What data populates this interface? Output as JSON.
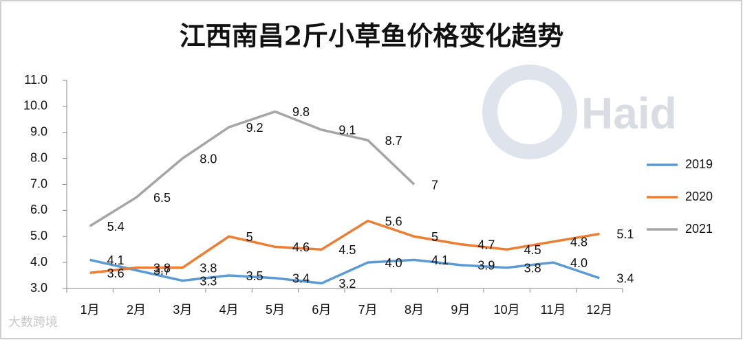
{
  "chart_data": {
    "type": "line",
    "title": "江西南昌2斤小草鱼价格变化趋势",
    "watermark": "Haid",
    "source_watermark": "大数跨境",
    "categories": [
      "1月",
      "2月",
      "3月",
      "4月",
      "5月",
      "6月",
      "7月",
      "8月",
      "9月",
      "10月",
      "11月",
      "12月"
    ],
    "series": [
      {
        "name": "2019",
        "color": "#5b9bd5",
        "values": [
          4.1,
          3.7,
          3.3,
          3.5,
          3.4,
          3.2,
          4.0,
          4.1,
          3.9,
          3.8,
          4.0,
          3.4
        ],
        "value_labels": [
          "4.1",
          "3.7",
          "3.3",
          "3.5",
          "3.4",
          "3.2",
          "4.0",
          "4.1",
          "3.9",
          "3.8",
          "4.0",
          "3.4"
        ]
      },
      {
        "name": "2020",
        "color": "#ed7d31",
        "values": [
          3.6,
          3.8,
          3.8,
          5,
          4.6,
          4.5,
          5.6,
          5,
          4.7,
          4.5,
          4.8,
          5.1
        ],
        "value_labels": [
          "3.6",
          "3.8",
          "3.8",
          "5",
          "4.6",
          "4.5",
          "5.6",
          "5",
          "4.7",
          "4.5",
          "4.8",
          "5.1"
        ]
      },
      {
        "name": "2021",
        "color": "#a5a5a5",
        "values": [
          5.4,
          6.5,
          8.0,
          9.2,
          9.8,
          9.1,
          8.7,
          7,
          null,
          null,
          null,
          null
        ],
        "value_labels": [
          "5.4",
          "6.5",
          "8.0",
          "9.2",
          "9.8",
          "9.1",
          "8.7",
          "7",
          null,
          null,
          null,
          null
        ]
      }
    ],
    "ylim": [
      3,
      11
    ],
    "yticks": [
      {
        "value": 3,
        "label": "3.0"
      },
      {
        "value": 4,
        "label": "4.0"
      },
      {
        "value": 5,
        "label": "5.0"
      },
      {
        "value": 6,
        "label": "6.0"
      },
      {
        "value": 7,
        "label": "7.0"
      },
      {
        "value": 8,
        "label": "8.0"
      },
      {
        "value": 9,
        "label": "9.0"
      },
      {
        "value": 10,
        "label": "10.0"
      },
      {
        "value": 11,
        "label": "11.0"
      }
    ],
    "grid": false,
    "legend": "right"
  }
}
